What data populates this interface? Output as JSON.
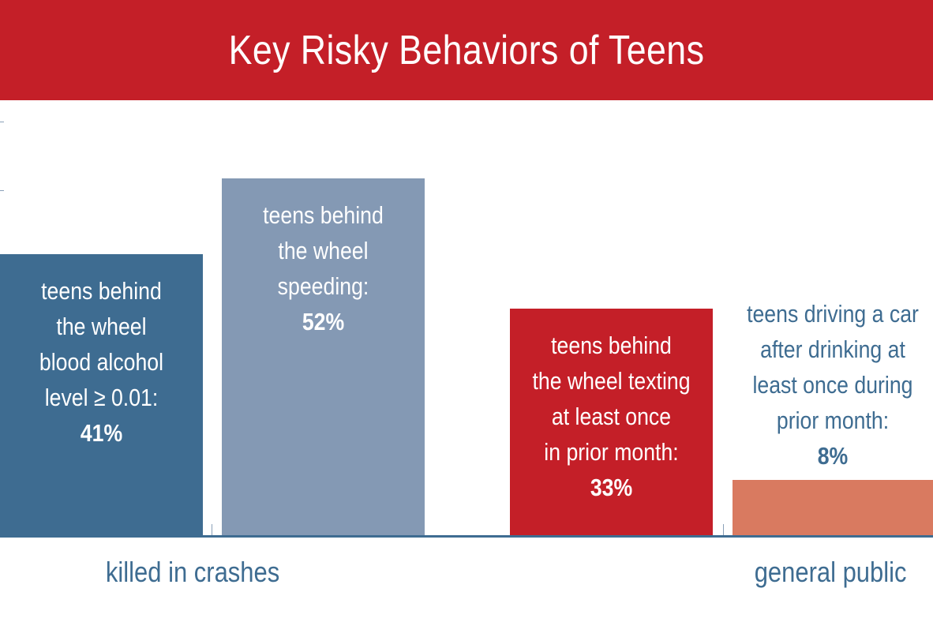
{
  "chart_data": {
    "type": "bar",
    "title": "Key Risky Behaviors of Teens",
    "groups": [
      {
        "label": "killed in crashes",
        "categories": [
          "teens behind the wheel blood alcohol level ≥ 0.01",
          "teens behind the wheel speeding",
          "teens behind the wheel texting at least once in prior month"
        ]
      },
      {
        "label": "general public",
        "categories": [
          "teens driving a car after drinking at least once during prior month"
        ]
      }
    ],
    "values": [
      41,
      52,
      33,
      8
    ],
    "bars": [
      {
        "lines": [
          "teens behind",
          "the wheel",
          "blood alcohol",
          "level ≥ 0.01:"
        ],
        "value": 41,
        "value_label": "41%",
        "color": "#3e6c91",
        "label_color": "#ffffff",
        "label_position": "inside"
      },
      {
        "lines": [
          "teens behind",
          "the wheel",
          "speeding:"
        ],
        "value": 52,
        "value_label": "52%",
        "color": "#8499b4",
        "label_color": "#ffffff",
        "label_position": "inside"
      },
      {
        "lines": [
          "teens behind",
          "the wheel texting",
          "at least once",
          "in prior month:"
        ],
        "value": 33,
        "value_label": "33%",
        "color": "#c41f28",
        "label_color": "#ffffff",
        "label_position": "inside"
      },
      {
        "lines": [
          "teens driving a car",
          "after drinking at",
          "least once during",
          "prior month:"
        ],
        "value": 8,
        "value_label": "8%",
        "color": "#d97a60",
        "label_color": "#3e6c91",
        "label_position": "above"
      }
    ],
    "ylim": [
      0,
      73
    ],
    "grid": false,
    "colors": {
      "banner": "#c41f28",
      "axis": "#3e6c91",
      "group_label": "#3e6c91"
    }
  }
}
